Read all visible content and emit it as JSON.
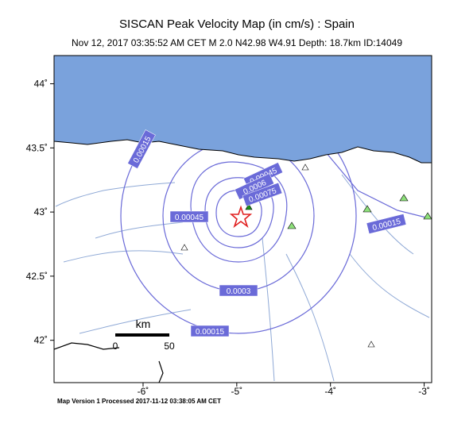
{
  "header": {
    "title": "SISCAN Peak Velocity Map (in cm/s) : Spain",
    "subtitle": "Nov 12, 2017 03:35:52 AM CET   M 2.0   N42.98 W4.91   Depth: 18.7km   ID:14049"
  },
  "map": {
    "lon_lim": [
      -6.95,
      -2.92
    ],
    "lat_lim": [
      41.67,
      44.22
    ],
    "lon_ticks": [
      {
        "value": -6,
        "label": "-6˚"
      },
      {
        "value": -5,
        "label": "-5˚"
      },
      {
        "value": -4,
        "label": "-4˚"
      },
      {
        "value": -3,
        "label": "-3˚"
      }
    ],
    "lat_ticks": [
      {
        "value": 44,
        "label": "44˚"
      },
      {
        "value": 43.5,
        "label": "43.5˚"
      },
      {
        "value": 43,
        "label": "43˚"
      },
      {
        "value": 42.5,
        "label": "42.5˚"
      },
      {
        "value": 42,
        "label": "42˚"
      }
    ],
    "contour_labels": [
      "0.00015",
      "0.00045",
      "0.0006",
      "0.00075",
      "0.00045",
      "0.0003",
      "0.00015",
      "0.00015"
    ],
    "scale_bar": {
      "unit": "km",
      "labels": [
        "0",
        "50"
      ]
    }
  },
  "footer": "Map Version 1 Processed 2017-11-12 03:38:05 AM CET"
}
